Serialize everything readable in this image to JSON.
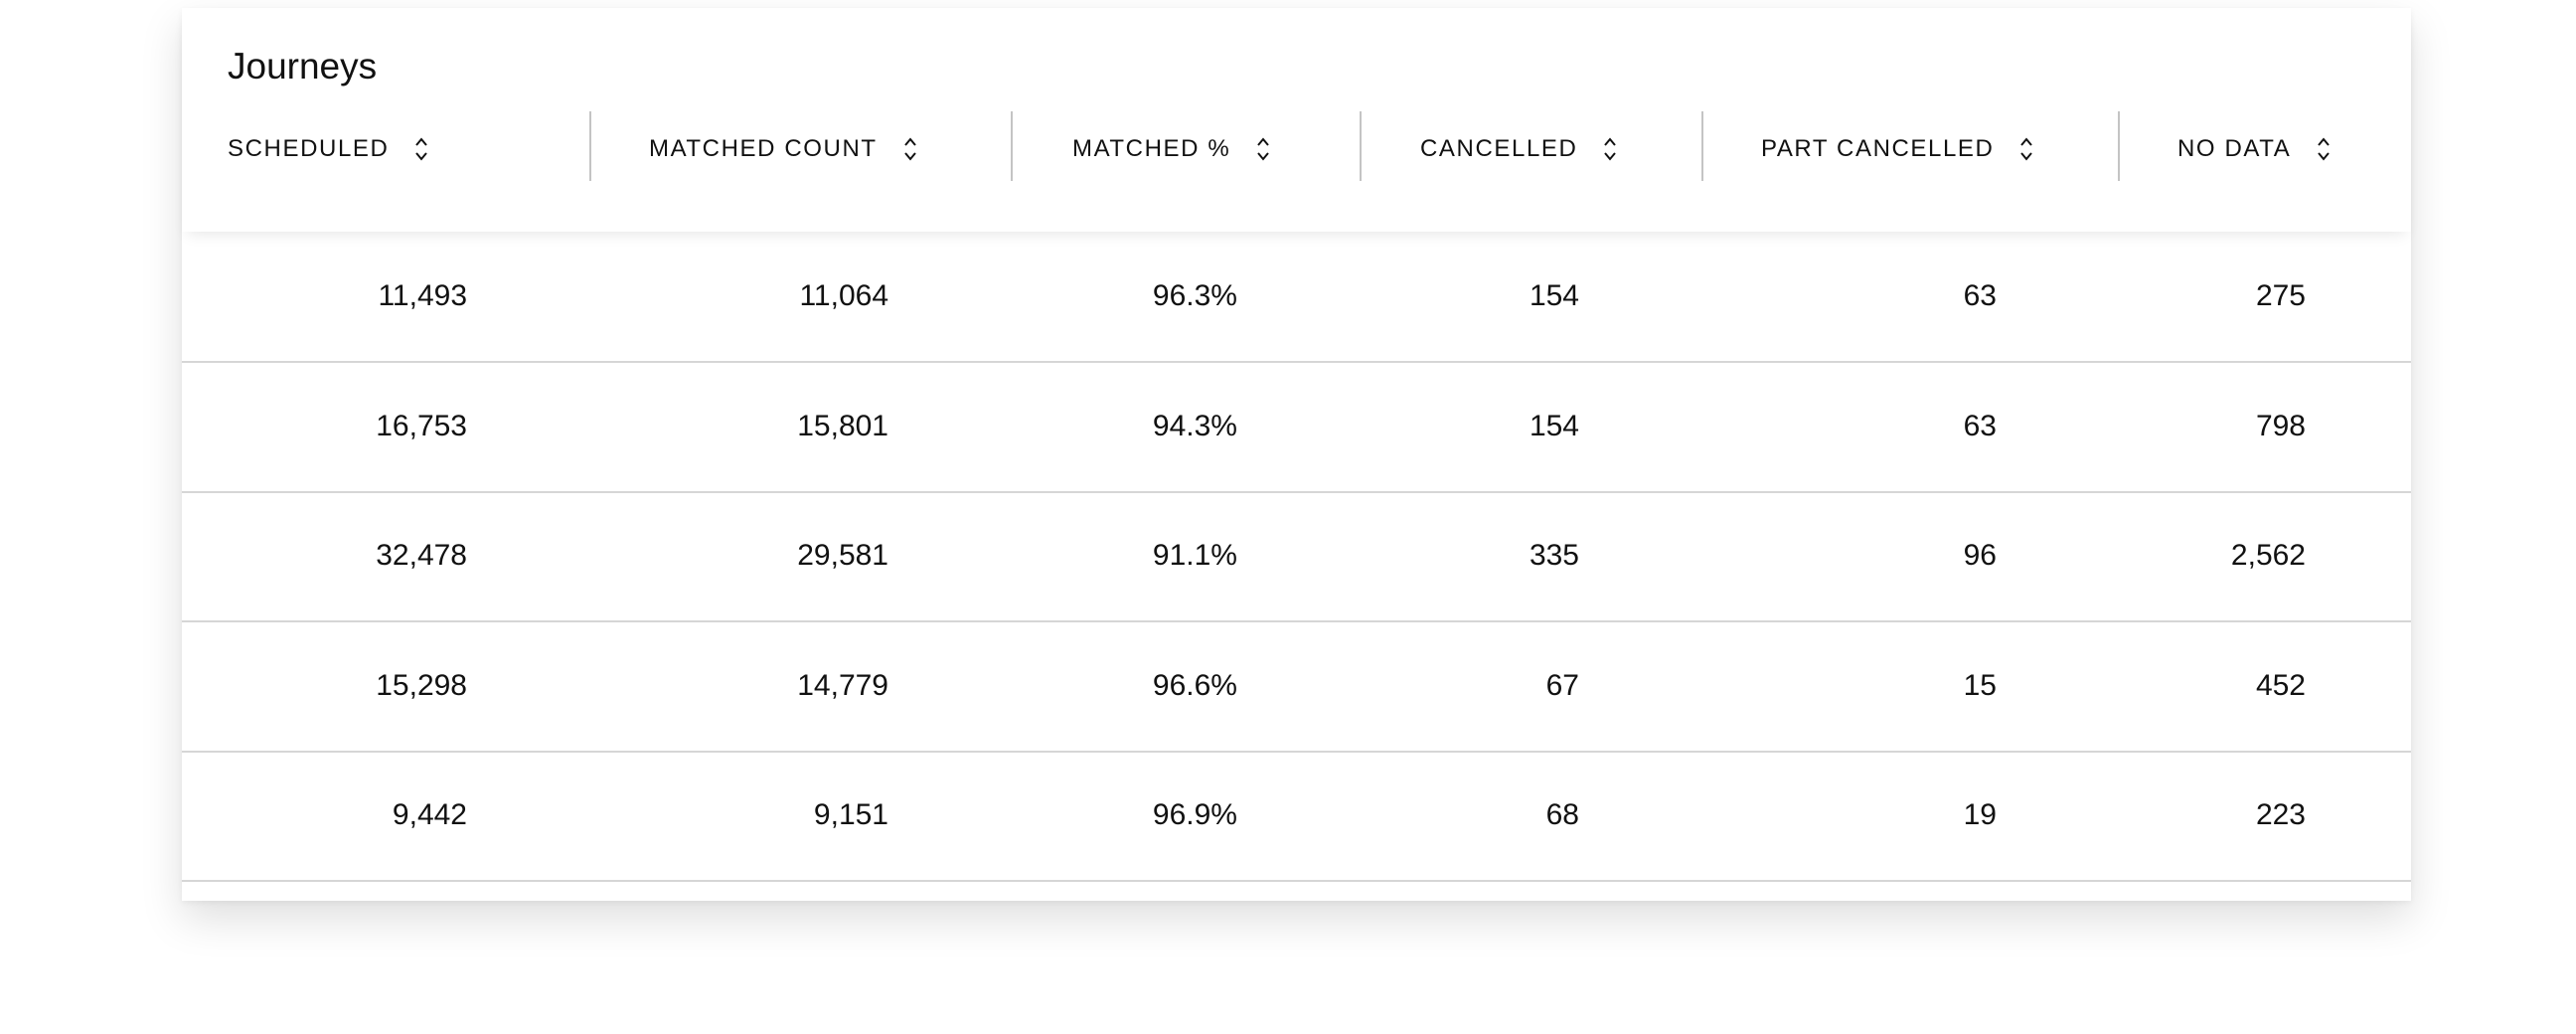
{
  "title": "Journeys",
  "columns": [
    {
      "label": "SCHEDULED",
      "sort_icon": "sort-up-down-icon"
    },
    {
      "label": "MATCHED COUNT",
      "sort_icon": "sort-up-down-icon"
    },
    {
      "label": "MATCHED %",
      "sort_icon": "sort-up-down-icon"
    },
    {
      "label": "CANCELLED",
      "sort_icon": "sort-up-down-icon"
    },
    {
      "label": "PART CANCELLED",
      "sort_icon": "sort-up-down-icon"
    },
    {
      "label": "NO DATA",
      "sort_icon": "sort-up-down-icon"
    }
  ],
  "rows": [
    [
      "11,493",
      "11,064",
      "96.3%",
      "154",
      "63",
      "275"
    ],
    [
      "16,753",
      "15,801",
      "94.3%",
      "154",
      "63",
      "798"
    ],
    [
      "32,478",
      "29,581",
      "91.1%",
      "335",
      "96",
      "2,562"
    ],
    [
      "15,298",
      "14,779",
      "96.6%",
      "67",
      "15",
      "452"
    ],
    [
      "9,442",
      "9,151",
      "96.9%",
      "68",
      "19",
      "223"
    ]
  ]
}
